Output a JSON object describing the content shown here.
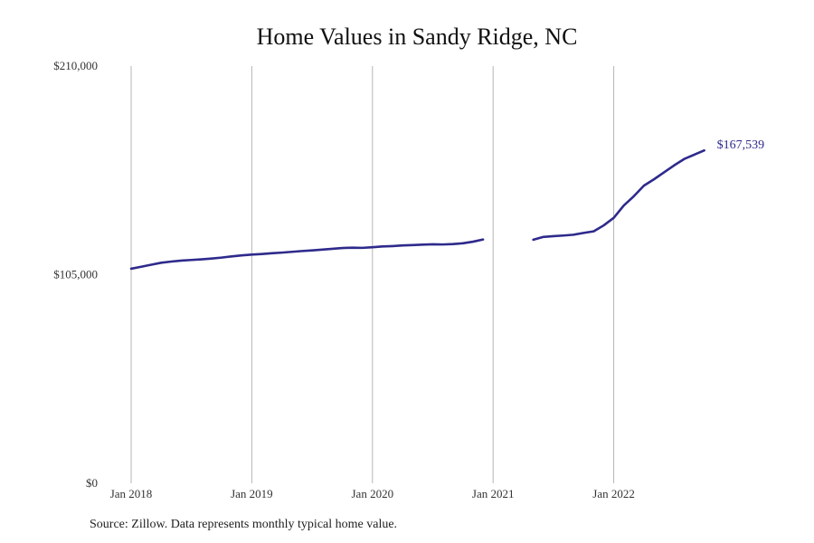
{
  "chart_data": {
    "type": "line",
    "title": "Home Values in Sandy Ridge, NC",
    "xlabel": "",
    "ylabel": "",
    "ylim": [
      0,
      210000
    ],
    "y_ticks": [
      0,
      105000,
      210000
    ],
    "y_tick_labels": [
      "$0",
      "$105,000",
      "$210,000"
    ],
    "x_ticks": [
      "2018-01",
      "2019-01",
      "2020-01",
      "2021-01",
      "2022-01"
    ],
    "x_tick_labels": [
      "Jan 2018",
      "Jan 2019",
      "Jan 2020",
      "Jan 2021",
      "Jan 2022"
    ],
    "grid": "vertical",
    "series": [
      {
        "color": "#2e2a8c",
        "points": [
          {
            "x": "2018-01",
            "y": 108000
          },
          {
            "x": "2018-02",
            "y": 109000
          },
          {
            "x": "2018-03",
            "y": 110000
          },
          {
            "x": "2018-04",
            "y": 111000
          },
          {
            "x": "2018-05",
            "y": 111600
          },
          {
            "x": "2018-06",
            "y": 112100
          },
          {
            "x": "2018-07",
            "y": 112400
          },
          {
            "x": "2018-08",
            "y": 112700
          },
          {
            "x": "2018-09",
            "y": 113100
          },
          {
            "x": "2018-10",
            "y": 113600
          },
          {
            "x": "2018-11",
            "y": 114200
          },
          {
            "x": "2018-12",
            "y": 114700
          },
          {
            "x": "2019-01",
            "y": 115100
          },
          {
            "x": "2019-02",
            "y": 115400
          },
          {
            "x": "2019-03",
            "y": 115800
          },
          {
            "x": "2019-04",
            "y": 116100
          },
          {
            "x": "2019-05",
            "y": 116500
          },
          {
            "x": "2019-06",
            "y": 116900
          },
          {
            "x": "2019-07",
            "y": 117200
          },
          {
            "x": "2019-08",
            "y": 117600
          },
          {
            "x": "2019-09",
            "y": 118000
          },
          {
            "x": "2019-10",
            "y": 118400
          },
          {
            "x": "2019-11",
            "y": 118600
          },
          {
            "x": "2019-12",
            "y": 118500
          },
          {
            "x": "2020-01",
            "y": 118800
          },
          {
            "x": "2020-02",
            "y": 119200
          },
          {
            "x": "2020-03",
            "y": 119400
          },
          {
            "x": "2020-04",
            "y": 119700
          },
          {
            "x": "2020-05",
            "y": 119900
          },
          {
            "x": "2020-06",
            "y": 120100
          },
          {
            "x": "2020-07",
            "y": 120300
          },
          {
            "x": "2020-08",
            "y": 120200
          },
          {
            "x": "2020-09",
            "y": 120400
          },
          {
            "x": "2020-10",
            "y": 120800
          },
          {
            "x": "2020-11",
            "y": 121600
          },
          {
            "x": "2020-12",
            "y": 122700
          },
          {
            "x": "2021-01",
            "y": null
          },
          {
            "x": "2021-02",
            "y": null
          },
          {
            "x": "2021-03",
            "y": null
          },
          {
            "x": "2021-04",
            "y": null
          },
          {
            "x": "2021-05",
            "y": 122600
          },
          {
            "x": "2021-06",
            "y": 124000
          },
          {
            "x": "2021-07",
            "y": 124400
          },
          {
            "x": "2021-08",
            "y": 124700
          },
          {
            "x": "2021-09",
            "y": 125100
          },
          {
            "x": "2021-10",
            "y": 126000
          },
          {
            "x": "2021-11",
            "y": 126800
          },
          {
            "x": "2021-12",
            "y": 129800
          },
          {
            "x": "2022-01",
            "y": 133600
          },
          {
            "x": "2022-02",
            "y": 139800
          },
          {
            "x": "2022-03",
            "y": 144500
          },
          {
            "x": "2022-04",
            "y": 149800
          },
          {
            "x": "2022-05",
            "y": 153000
          },
          {
            "x": "2022-06",
            "y": 156500
          },
          {
            "x": "2022-07",
            "y": 160000
          },
          {
            "x": "2022-08",
            "y": 163200
          },
          {
            "x": "2022-09",
            "y": 165400
          },
          {
            "x": "2022-10",
            "y": 167539
          }
        ]
      }
    ],
    "end_label": "$167,539"
  },
  "source_note": "Source: Zillow. Data represents monthly typical home value."
}
